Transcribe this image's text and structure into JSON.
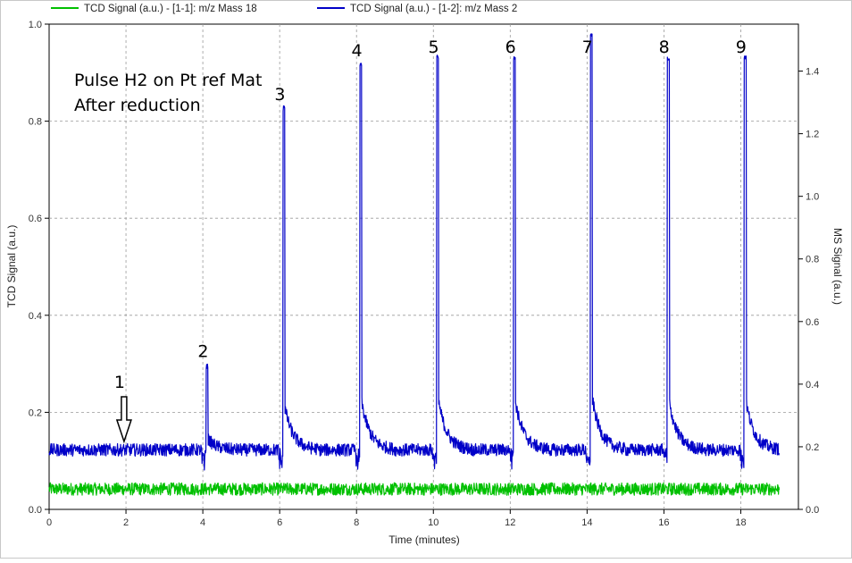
{
  "chart_data": {
    "type": "line",
    "legend": {
      "position": "top-left",
      "entries": [
        {
          "label": "TCD Signal (a.u.) - [1-1]: m/z Mass 18",
          "color": "#00c000"
        },
        {
          "label": "TCD Signal (a.u.) - [1-2]: m/z Mass 2",
          "color": "#0000c8"
        }
      ]
    },
    "xlabel": "Time (minutes)",
    "ylabel_left": "TCD Signal (a.u.)",
    "ylabel_right": "MS Signal (a.u.)",
    "xlim": [
      0,
      19.5
    ],
    "ylim_left": [
      0,
      1.0
    ],
    "ylim_right": [
      0,
      1.55
    ],
    "x_ticks": [
      "0",
      "2",
      "4",
      "6",
      "8",
      "10",
      "12",
      "14",
      "16",
      "18"
    ],
    "y_left_ticks": [
      "0.0",
      "0.2",
      "0.4",
      "0.6",
      "0.8",
      "1.0"
    ],
    "y_right_ticks": [
      "0.0",
      "0.2",
      "0.4",
      "0.6",
      "0.8",
      "1.0",
      "1.2",
      "1.4"
    ],
    "grid": "dashed",
    "annotation": {
      "lines": [
        "Pulse H2 on Pt ref Mat",
        "After reduction"
      ]
    },
    "arrow_marker": {
      "label": "1",
      "x": 1.95,
      "tcd_y": 0.14
    },
    "peak_labels": [
      {
        "label": "2",
        "x": 4.1
      },
      {
        "label": "3",
        "x": 6.1
      },
      {
        "label": "4",
        "x": 8.1
      },
      {
        "label": "5",
        "x": 10.1
      },
      {
        "label": "6",
        "x": 12.1
      },
      {
        "label": "7",
        "x": 14.1
      },
      {
        "label": "8",
        "x": 16.1
      },
      {
        "label": "9",
        "x": 18.1
      }
    ],
    "series": [
      {
        "name": "TCD Signal (a.u.) - [1-1]: m/z Mass 18",
        "color": "#00c000",
        "axis": "right",
        "x_range": [
          0,
          19
        ],
        "baseline": 0.065,
        "noise_amplitude": 0.02
      },
      {
        "name": "TCD Signal (a.u.) - [1-2]: m/z Mass 2",
        "color": "#0000c8",
        "axis": "right",
        "x_range": [
          0,
          19
        ],
        "baseline": 0.19,
        "noise_amplitude": 0.02,
        "peaks": [
          {
            "x": 4.1,
            "y": 0.47
          },
          {
            "x": 6.1,
            "y": 1.29
          },
          {
            "x": 8.1,
            "y": 1.43
          },
          {
            "x": 10.1,
            "y": 1.46
          },
          {
            "x": 12.1,
            "y": 1.45
          },
          {
            "x": 14.1,
            "y": 1.53
          },
          {
            "x": 16.1,
            "y": 1.45
          },
          {
            "x": 18.1,
            "y": 1.45
          }
        ]
      }
    ]
  }
}
